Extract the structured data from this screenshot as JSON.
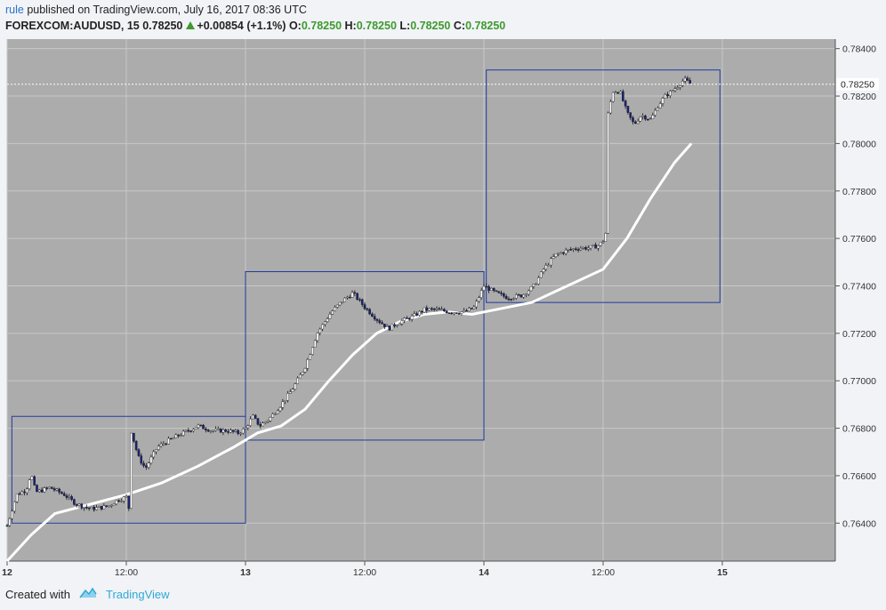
{
  "header": {
    "user": "rule",
    "published_text": "published on TradingView.com, July 16, 2017 08:36 UTC",
    "symbol": "FOREXCOM:AUDUSD",
    "interval": "15",
    "last": "0.78250",
    "change": "+0.00854 (+1.1%)",
    "o_label": "O:",
    "o_value": "0.78250",
    "h_label": "H:",
    "h_value": "0.78250",
    "l_label": "L:",
    "l_value": "0.78250",
    "c_label": "C:",
    "c_value": "0.78250"
  },
  "footer": {
    "created_with": "Created with",
    "brand": "TradingView"
  },
  "colors": {
    "plot_bg": "#acacac",
    "grid": "#c8c8c8",
    "box": "#1f3aa0",
    "ma": "#ffffff",
    "candle_up": "#ffffff",
    "candle_down": "#1a2378",
    "wick": "#1a1a1a"
  },
  "chart_data": {
    "type": "candlestick",
    "symbol": "FOREXCOM:AUDUSD",
    "interval": "15",
    "x_ticks": [
      "12",
      "12:00",
      "13",
      "12:00",
      "14",
      "12:00",
      "15"
    ],
    "y_ticks": [
      "0.78400",
      "0.78200",
      "0.78000",
      "0.77800",
      "0.77600",
      "0.77400",
      "0.77200",
      "0.77000",
      "0.76800",
      "0.76600",
      "0.76400"
    ],
    "ylim": [
      0.7624,
      0.7844
    ],
    "xlim_days": [
      12.0,
      15.5
    ],
    "current_price_label": "0.78250",
    "price_path": [
      [
        12.0,
        0.7639
      ],
      [
        12.04,
        0.7652
      ],
      [
        12.08,
        0.7654
      ],
      [
        12.1,
        0.7661
      ],
      [
        12.12,
        0.7653
      ],
      [
        12.18,
        0.7655
      ],
      [
        12.24,
        0.7652
      ],
      [
        12.29,
        0.7648
      ],
      [
        12.35,
        0.7646
      ],
      [
        12.42,
        0.7647
      ],
      [
        12.47,
        0.765
      ],
      [
        12.5,
        0.7651
      ],
      [
        12.51,
        0.7645
      ],
      [
        12.52,
        0.7679
      ],
      [
        12.55,
        0.7668
      ],
      [
        12.58,
        0.7663
      ],
      [
        12.63,
        0.7672
      ],
      [
        12.68,
        0.7675
      ],
      [
        12.74,
        0.7678
      ],
      [
        12.8,
        0.7681
      ],
      [
        12.86,
        0.7679
      ],
      [
        12.92,
        0.7679
      ],
      [
        12.97,
        0.7678
      ],
      [
        13.0,
        0.768
      ],
      [
        13.03,
        0.7685
      ],
      [
        13.06,
        0.7681
      ],
      [
        13.1,
        0.7684
      ],
      [
        13.15,
        0.769
      ],
      [
        13.2,
        0.7697
      ],
      [
        13.25,
        0.7706
      ],
      [
        13.3,
        0.772
      ],
      [
        13.36,
        0.7729
      ],
      [
        13.41,
        0.7734
      ],
      [
        13.45,
        0.7737
      ],
      [
        13.5,
        0.7731
      ],
      [
        13.55,
        0.7726
      ],
      [
        13.6,
        0.7722
      ],
      [
        13.65,
        0.7725
      ],
      [
        13.7,
        0.7727
      ],
      [
        13.75,
        0.773
      ],
      [
        13.8,
        0.773
      ],
      [
        13.86,
        0.7729
      ],
      [
        13.92,
        0.7729
      ],
      [
        13.96,
        0.7731
      ],
      [
        14.0,
        0.774
      ],
      [
        14.05,
        0.7737
      ],
      [
        14.1,
        0.7735
      ],
      [
        14.16,
        0.7736
      ],
      [
        14.21,
        0.774
      ],
      [
        14.25,
        0.7747
      ],
      [
        14.3,
        0.7753
      ],
      [
        14.35,
        0.7755
      ],
      [
        14.4,
        0.7756
      ],
      [
        14.44,
        0.7756
      ],
      [
        14.48,
        0.7757
      ],
      [
        14.51,
        0.776
      ],
      [
        14.52,
        0.7812
      ],
      [
        14.54,
        0.7822
      ],
      [
        14.57,
        0.7822
      ],
      [
        14.6,
        0.7813
      ],
      [
        14.63,
        0.7808
      ],
      [
        14.66,
        0.7812
      ],
      [
        14.7,
        0.781
      ],
      [
        14.73,
        0.7816
      ],
      [
        14.76,
        0.782
      ],
      [
        14.8,
        0.7823
      ],
      [
        14.84,
        0.7827
      ],
      [
        14.87,
        0.7825
      ]
    ],
    "ma_path": [
      [
        12.0,
        0.7624
      ],
      [
        12.1,
        0.7635
      ],
      [
        12.2,
        0.7644
      ],
      [
        12.35,
        0.7648
      ],
      [
        12.5,
        0.7652
      ],
      [
        12.65,
        0.7657
      ],
      [
        12.8,
        0.7664
      ],
      [
        12.95,
        0.7672
      ],
      [
        13.05,
        0.7678
      ],
      [
        13.15,
        0.7681
      ],
      [
        13.25,
        0.7688
      ],
      [
        13.35,
        0.77
      ],
      [
        13.45,
        0.7711
      ],
      [
        13.55,
        0.772
      ],
      [
        13.65,
        0.7725
      ],
      [
        13.75,
        0.7728
      ],
      [
        13.85,
        0.7729
      ],
      [
        13.95,
        0.7728
      ],
      [
        14.05,
        0.773
      ],
      [
        14.2,
        0.7733
      ],
      [
        14.35,
        0.774
      ],
      [
        14.5,
        0.7747
      ],
      [
        14.6,
        0.776
      ],
      [
        14.7,
        0.7777
      ],
      [
        14.8,
        0.7792
      ],
      [
        14.87,
        0.78
      ]
    ],
    "boxes": [
      {
        "x0": 12.02,
        "x1": 13.0,
        "y_top": 0.7685,
        "y_bottom": 0.764
      },
      {
        "x0": 13.0,
        "x1": 14.0,
        "y_top": 0.7746,
        "y_bottom": 0.7675
      },
      {
        "x0": 14.01,
        "x1": 14.99,
        "y_top": 0.7831,
        "y_bottom": 0.7733
      }
    ]
  }
}
